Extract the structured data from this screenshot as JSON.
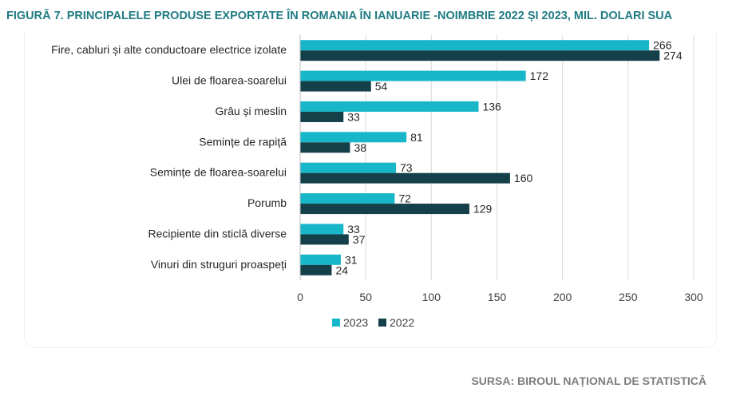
{
  "title": "FIGURĂ 7. PRINCIPALELE PRODUSE EXPORTATE ÎN ROMANIA ÎN IANUARIE -NOIMBRIE 2022 ȘI 2023, MIL. DOLARI SUA",
  "source": "SURSA: BIROUL NAȚIONAL DE STATISTICĂ",
  "colors": {
    "series_2023": "#17b7c9",
    "series_2022": "#14404a",
    "grid": "#d9d9d9",
    "title": "#1f7b82"
  },
  "chart_data": {
    "type": "bar",
    "orientation": "horizontal",
    "categories": [
      "Fire, cabluri și alte conductoare electrice izolate",
      "Ulei de floarea-soarelui",
      "Grâu și meslin",
      "Semințe de rapiță",
      "Semințe de floarea-soarelui",
      "Porumb",
      "Recipiente din sticlă diverse",
      "Vinuri din struguri proaspeți"
    ],
    "series": [
      {
        "name": "2023",
        "values": [
          266,
          172,
          136,
          81,
          73,
          72,
          33,
          31
        ]
      },
      {
        "name": "2022",
        "values": [
          274,
          54,
          33,
          38,
          160,
          129,
          37,
          24
        ]
      }
    ],
    "x_ticks": [
      "0",
      "50",
      "100",
      "150",
      "200",
      "250",
      "300"
    ],
    "xlim": [
      0,
      300
    ],
    "grid": "vertical",
    "legend": "bottom"
  }
}
